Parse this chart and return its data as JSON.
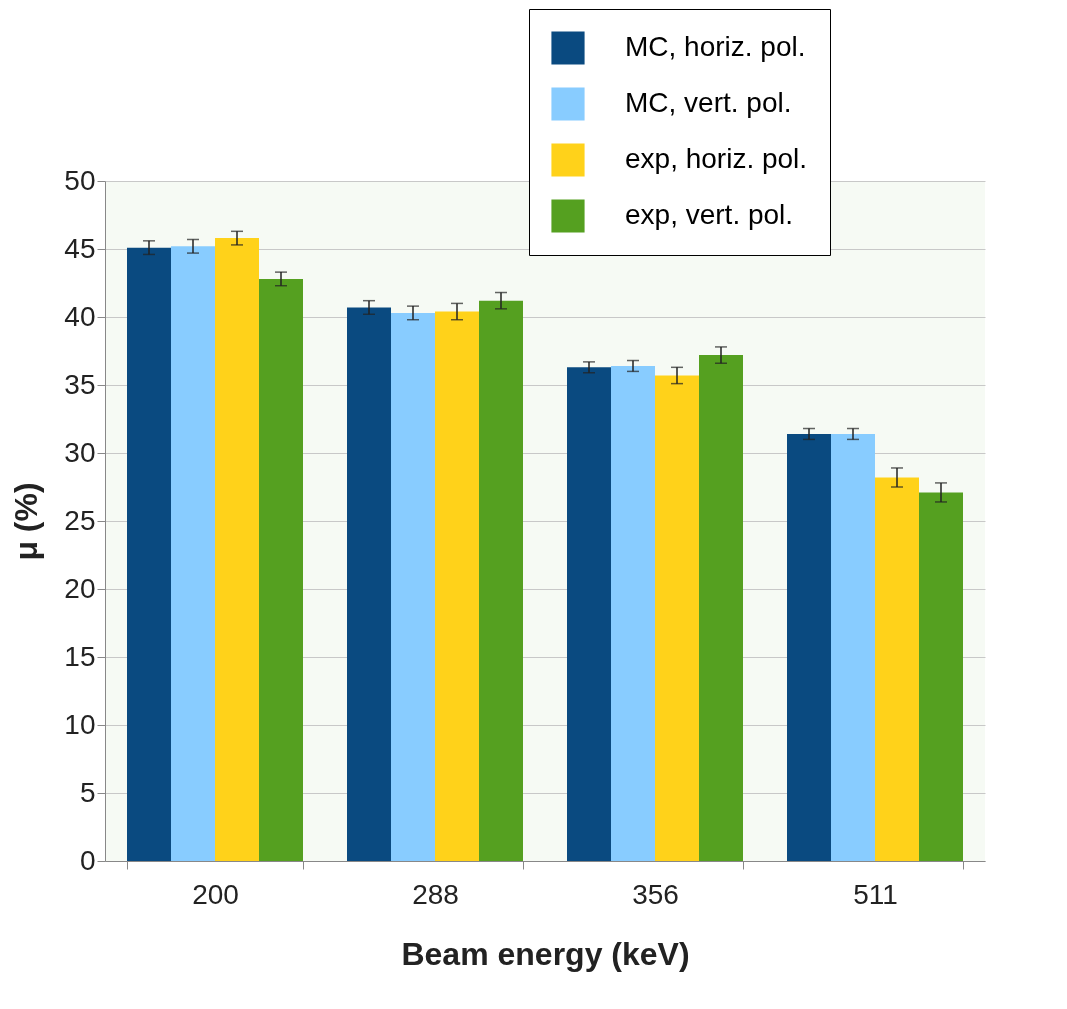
{
  "chart_data": {
    "type": "bar",
    "xlabel": "Beam energy (keV)",
    "ylabel": "μ (%)",
    "categories": [
      "200",
      "288",
      "356",
      "511"
    ],
    "series": [
      {
        "name": "MC, horiz. pol.",
        "color": "#0a4a80",
        "values": [
          45.1,
          40.7,
          36.3,
          31.4
        ],
        "errors": [
          0.5,
          0.5,
          0.4,
          0.4
        ]
      },
      {
        "name": "MC, vert. pol.",
        "color": "#88ccff",
        "values": [
          45.2,
          40.3,
          36.4,
          31.4
        ],
        "errors": [
          0.5,
          0.5,
          0.4,
          0.4
        ]
      },
      {
        "name": "exp, horiz. pol.",
        "color": "#ffd21a",
        "values": [
          45.8,
          40.4,
          35.7,
          28.2
        ],
        "errors": [
          0.5,
          0.6,
          0.6,
          0.7
        ]
      },
      {
        "name": "exp, vert. pol.",
        "color": "#55a020",
        "values": [
          42.8,
          41.2,
          37.2,
          27.1
        ],
        "errors": [
          0.5,
          0.6,
          0.6,
          0.7
        ]
      }
    ],
    "ylim": [
      0,
      50
    ],
    "yticks": [
      0,
      5,
      10,
      15,
      20,
      25,
      30,
      35,
      40,
      45,
      50
    ],
    "grid": "y",
    "legend": "top right"
  }
}
